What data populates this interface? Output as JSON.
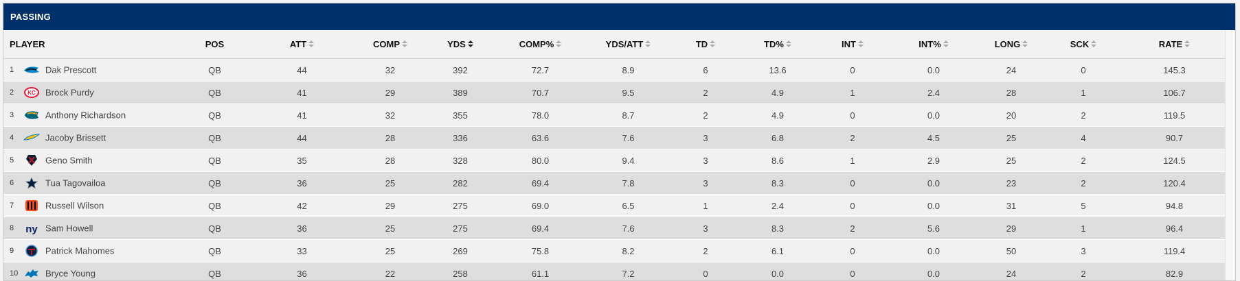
{
  "panel": {
    "title": "PASSING"
  },
  "columns": [
    {
      "key": "player",
      "label": "PLAYER",
      "sortable": false
    },
    {
      "key": "pos",
      "label": "POS",
      "sortable": false
    },
    {
      "key": "att",
      "label": "ATT",
      "sortable": true
    },
    {
      "key": "comp",
      "label": "COMP",
      "sortable": true
    },
    {
      "key": "yds",
      "label": "YDS",
      "sortable": true,
      "active": true
    },
    {
      "key": "comp_pct",
      "label": "COMP%",
      "sortable": true
    },
    {
      "key": "yds_att",
      "label": "YDS/ATT",
      "sortable": true
    },
    {
      "key": "td",
      "label": "TD",
      "sortable": true
    },
    {
      "key": "td_pct",
      "label": "TD%",
      "sortable": true
    },
    {
      "key": "int",
      "label": "INT",
      "sortable": true
    },
    {
      "key": "int_pct",
      "label": "INT%",
      "sortable": true
    },
    {
      "key": "long",
      "label": "LONG",
      "sortable": true
    },
    {
      "key": "sck",
      "label": "SCK",
      "sortable": true
    },
    {
      "key": "rate",
      "label": "RATE",
      "sortable": true
    }
  ],
  "rows": [
    {
      "rank": "1",
      "team_logo": "panthers-logo-icon",
      "player": "Dak Prescott",
      "pos": "QB",
      "att": "44",
      "comp": "32",
      "yds": "392",
      "comp_pct": "72.7",
      "yds_att": "8.9",
      "td": "6",
      "td_pct": "13.6",
      "int": "0",
      "int_pct": "0.0",
      "long": "24",
      "sck": "0",
      "rate": "145.3"
    },
    {
      "rank": "2",
      "team_logo": "chiefs-logo-icon",
      "player": "Brock Purdy",
      "pos": "QB",
      "att": "41",
      "comp": "29",
      "yds": "389",
      "comp_pct": "70.7",
      "yds_att": "9.5",
      "td": "2",
      "td_pct": "4.9",
      "int": "1",
      "int_pct": "2.4",
      "long": "28",
      "sck": "1",
      "rate": "106.7"
    },
    {
      "rank": "3",
      "team_logo": "jaguars-logo-icon",
      "player": "Anthony Richardson",
      "pos": "QB",
      "att": "41",
      "comp": "32",
      "yds": "355",
      "comp_pct": "78.0",
      "yds_att": "8.7",
      "td": "2",
      "td_pct": "4.9",
      "int": "0",
      "int_pct": "0.0",
      "long": "20",
      "sck": "2",
      "rate": "119.5"
    },
    {
      "rank": "4",
      "team_logo": "chargers-logo-icon",
      "player": "Jacoby Brissett",
      "pos": "QB",
      "att": "44",
      "comp": "28",
      "yds": "336",
      "comp_pct": "63.6",
      "yds_att": "7.6",
      "td": "3",
      "td_pct": "6.8",
      "int": "2",
      "int_pct": "4.5",
      "long": "25",
      "sck": "4",
      "rate": "90.7"
    },
    {
      "rank": "5",
      "team_logo": "texans-logo-icon",
      "player": "Geno Smith",
      "pos": "QB",
      "att": "35",
      "comp": "28",
      "yds": "328",
      "comp_pct": "80.0",
      "yds_att": "9.4",
      "td": "3",
      "td_pct": "8.6",
      "int": "1",
      "int_pct": "2.9",
      "long": "25",
      "sck": "2",
      "rate": "124.5"
    },
    {
      "rank": "6",
      "team_logo": "cowboys-logo-icon",
      "player": "Tua Tagovailoa",
      "pos": "QB",
      "att": "36",
      "comp": "25",
      "yds": "282",
      "comp_pct": "69.4",
      "yds_att": "7.8",
      "td": "3",
      "td_pct": "8.3",
      "int": "0",
      "int_pct": "0.0",
      "long": "23",
      "sck": "2",
      "rate": "120.4"
    },
    {
      "rank": "7",
      "team_logo": "bengals-logo-icon",
      "player": "Russell Wilson",
      "pos": "QB",
      "att": "42",
      "comp": "29",
      "yds": "275",
      "comp_pct": "69.0",
      "yds_att": "6.5",
      "td": "1",
      "td_pct": "2.4",
      "int": "0",
      "int_pct": "0.0",
      "long": "31",
      "sck": "5",
      "rate": "94.8"
    },
    {
      "rank": "8",
      "team_logo": "giants-logo-icon",
      "player": "Sam Howell",
      "pos": "QB",
      "att": "36",
      "comp": "25",
      "yds": "275",
      "comp_pct": "69.4",
      "yds_att": "7.6",
      "td": "3",
      "td_pct": "8.3",
      "int": "2",
      "int_pct": "5.6",
      "long": "29",
      "sck": "1",
      "rate": "96.4"
    },
    {
      "rank": "9",
      "team_logo": "titans-logo-icon",
      "player": "Patrick Mahomes",
      "pos": "QB",
      "att": "33",
      "comp": "25",
      "yds": "269",
      "comp_pct": "75.8",
      "yds_att": "8.2",
      "td": "2",
      "td_pct": "6.1",
      "int": "0",
      "int_pct": "0.0",
      "long": "50",
      "sck": "3",
      "rate": "119.4"
    },
    {
      "rank": "10",
      "team_logo": "lions-logo-icon",
      "player": "Bryce Young",
      "pos": "QB",
      "att": "36",
      "comp": "22",
      "yds": "258",
      "comp_pct": "61.1",
      "yds_att": "7.2",
      "td": "0",
      "td_pct": "0.0",
      "int": "0",
      "int_pct": "0.0",
      "long": "24",
      "sck": "2",
      "rate": "82.9"
    }
  ],
  "colors": {
    "header_bg": "#003069",
    "row_odd": "#f1f1f1",
    "row_even": "#dedede"
  }
}
